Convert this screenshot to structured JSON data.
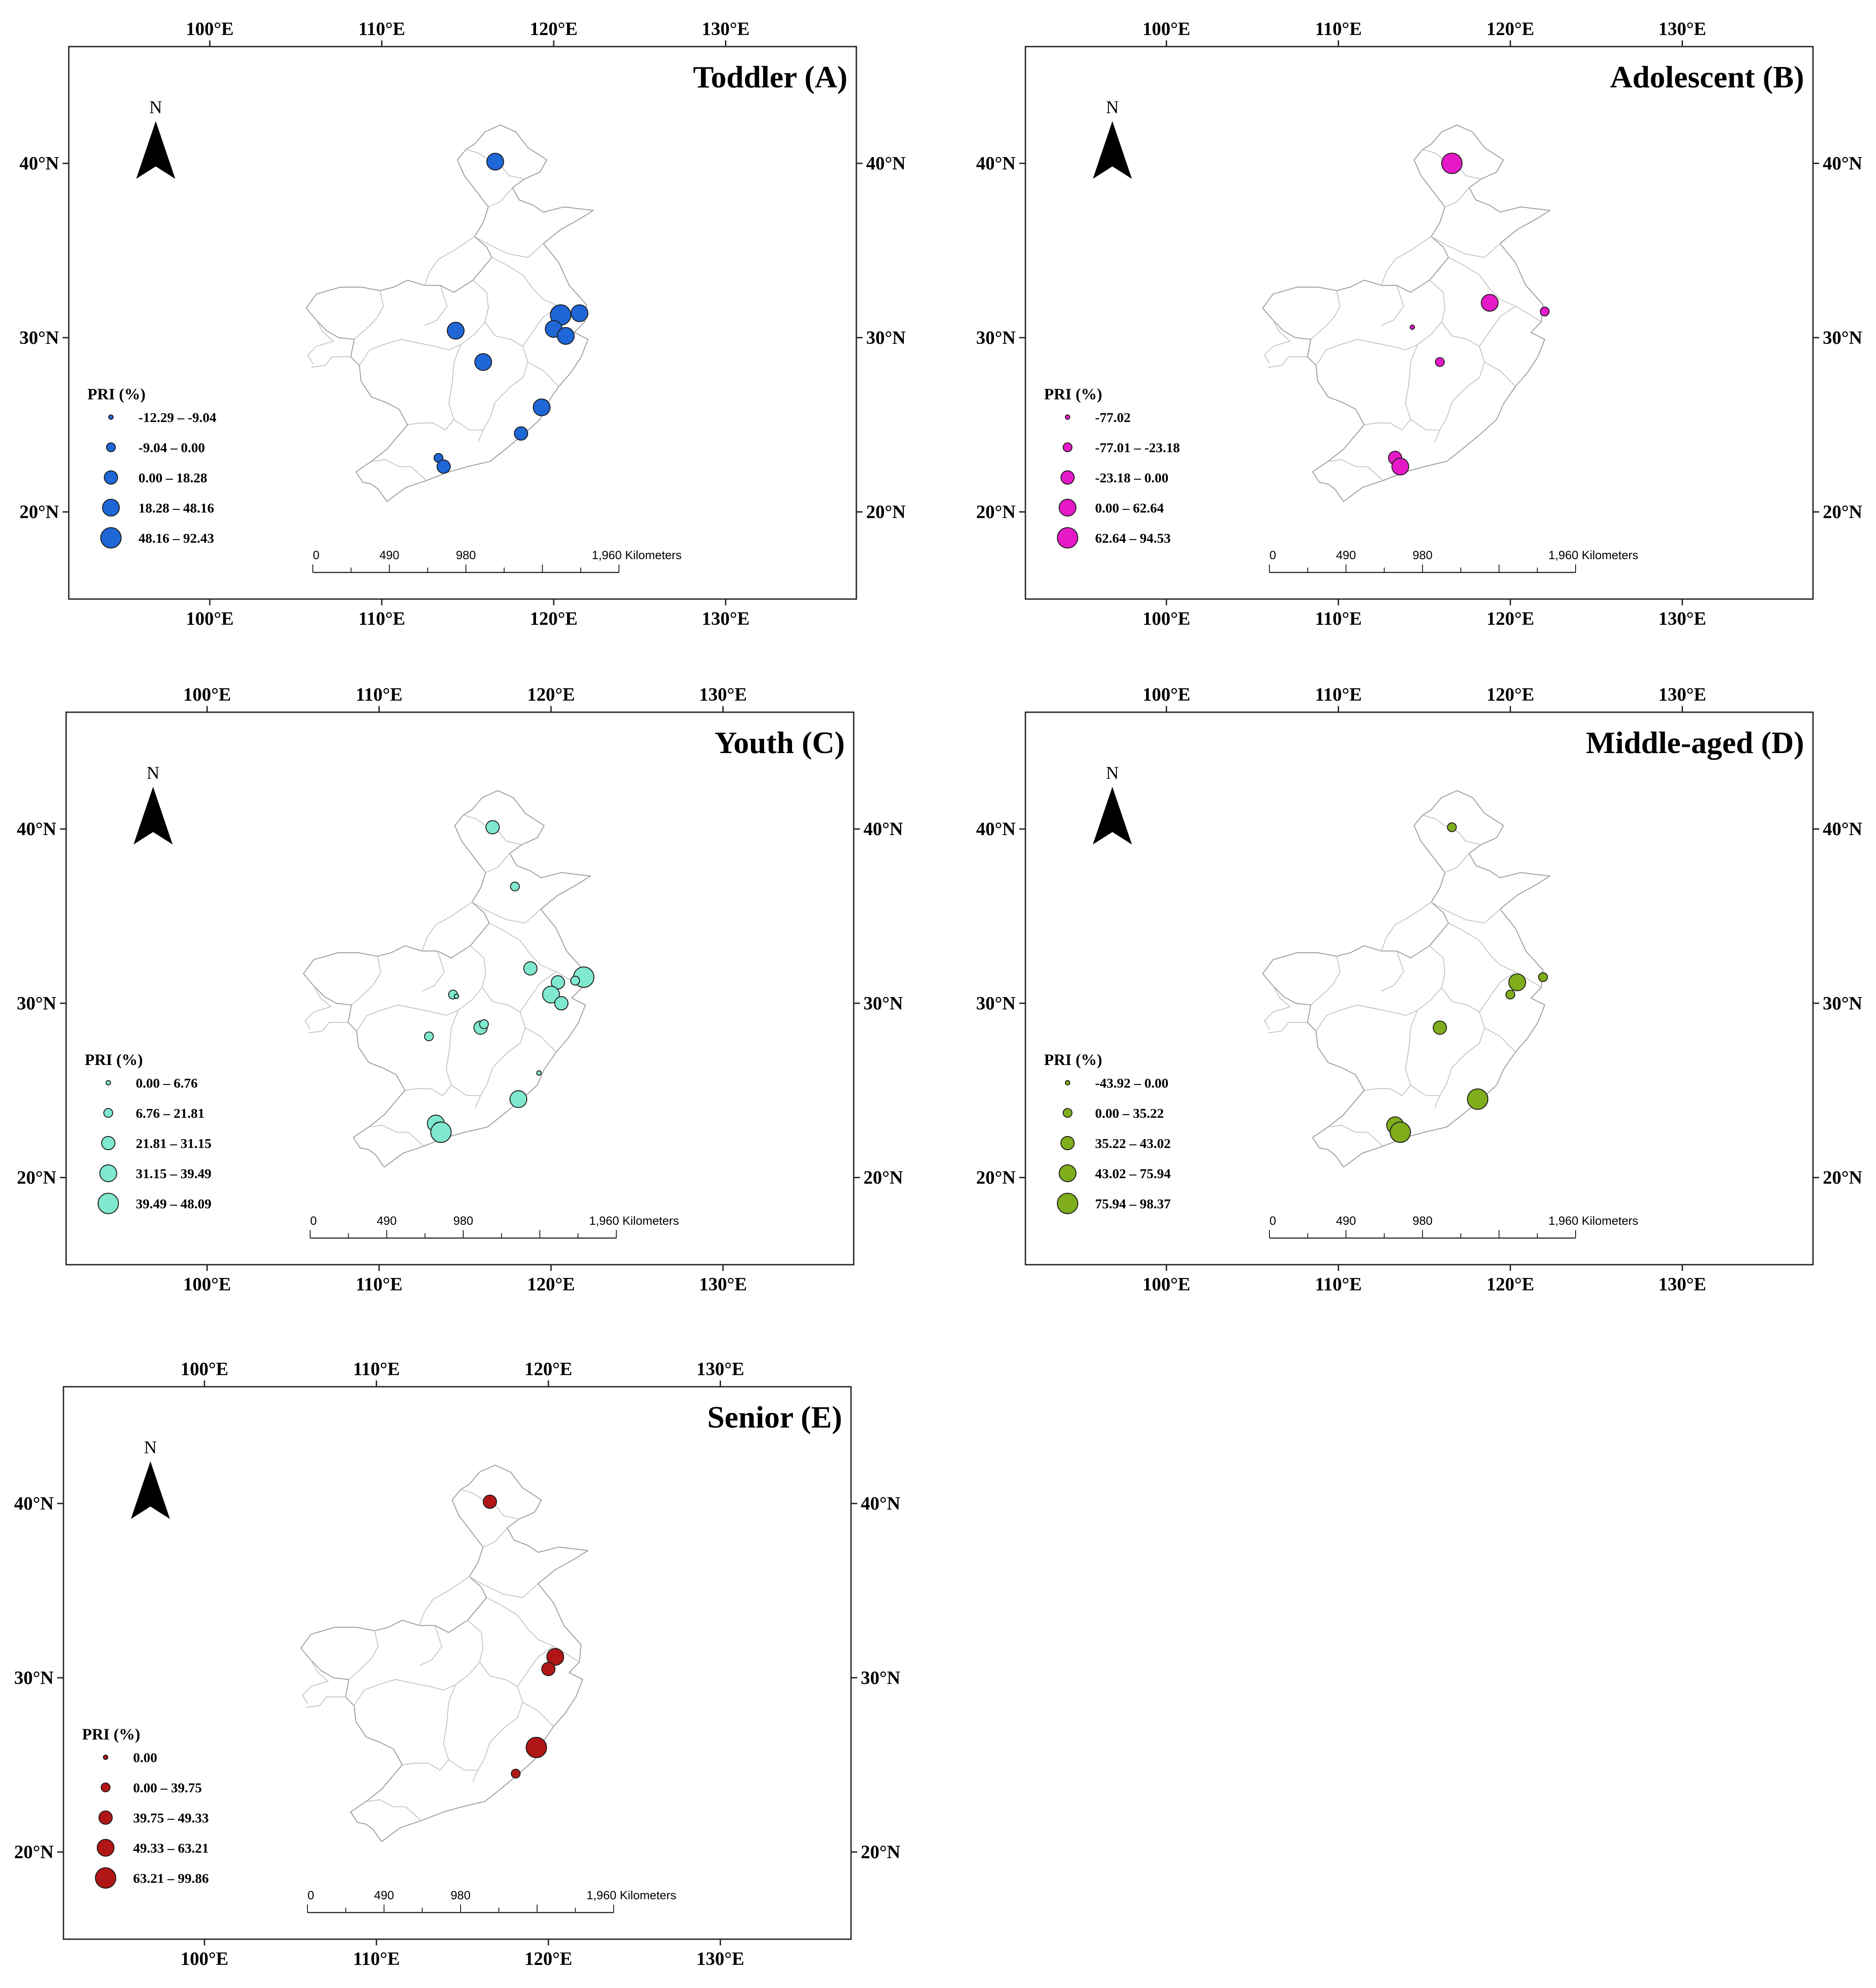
{
  "map": {
    "lon_ticks": [
      "100°E",
      "110°E",
      "120°E",
      "130°E"
    ],
    "lat_ticks": [
      "40°N",
      "30°N",
      "20°N"
    ],
    "north_label": "N",
    "legend_title": "PRI (%)",
    "scale_labels": [
      "0",
      "490",
      "980",
      "1,960 Kilometers"
    ]
  },
  "panels": [
    {
      "id": "A",
      "title": "Toddler (A)",
      "color": "#1f66d6",
      "legend": [
        "-12.29 – -9.04",
        "-9.04 – 0.00",
        "0.00 – 18.28",
        "18.28 – 48.16",
        "48.16 – 92.43"
      ],
      "sites": [
        {
          "lon": 116.6,
          "lat": 40.1,
          "cls": 3
        },
        {
          "lon": 114.3,
          "lat": 30.4,
          "cls": 3
        },
        {
          "lon": 115.9,
          "lat": 28.6,
          "cls": 3
        },
        {
          "lon": 120.4,
          "lat": 31.3,
          "cls": 4
        },
        {
          "lon": 121.5,
          "lat": 31.4,
          "cls": 3
        },
        {
          "lon": 120.0,
          "lat": 30.5,
          "cls": 3
        },
        {
          "lon": 120.7,
          "lat": 30.1,
          "cls": 3
        },
        {
          "lon": 119.3,
          "lat": 26.0,
          "cls": 3
        },
        {
          "lon": 118.1,
          "lat": 24.5,
          "cls": 2
        },
        {
          "lon": 113.3,
          "lat": 23.1,
          "cls": 1
        },
        {
          "lon": 113.6,
          "lat": 22.6,
          "cls": 2
        }
      ]
    },
    {
      "id": "B",
      "title": "Adolescent (B)",
      "color": "#e619c8",
      "legend": [
        "-77.02",
        "-77.01 – -23.18",
        "-23.18 – 0.00",
        "0.00 – 62.64",
        "62.64 – 94.53"
      ],
      "sites": [
        {
          "lon": 116.6,
          "lat": 40.0,
          "cls": 4
        },
        {
          "lon": 118.8,
          "lat": 32.0,
          "cls": 3
        },
        {
          "lon": 122.0,
          "lat": 31.5,
          "cls": 1
        },
        {
          "lon": 114.3,
          "lat": 30.6,
          "cls": 0
        },
        {
          "lon": 115.9,
          "lat": 28.6,
          "cls": 1
        },
        {
          "lon": 113.3,
          "lat": 23.1,
          "cls": 2
        },
        {
          "lon": 113.6,
          "lat": 22.6,
          "cls": 3
        }
      ]
    },
    {
      "id": "C",
      "title": "Youth (C)",
      "color": "#7fe8cf",
      "legend": [
        "0.00 – 6.76",
        "6.76 – 21.81",
        "21.81 – 31.15",
        "31.15 – 39.49",
        "39.49 – 48.09"
      ],
      "sites": [
        {
          "lon": 116.6,
          "lat": 40.1,
          "cls": 2
        },
        {
          "lon": 117.9,
          "lat": 36.7,
          "cls": 1
        },
        {
          "lon": 118.8,
          "lat": 32.0,
          "cls": 2
        },
        {
          "lon": 121.9,
          "lat": 31.5,
          "cls": 4
        },
        {
          "lon": 121.4,
          "lat": 31.3,
          "cls": 1
        },
        {
          "lon": 120.4,
          "lat": 31.2,
          "cls": 2
        },
        {
          "lon": 120.0,
          "lat": 30.5,
          "cls": 3
        },
        {
          "lon": 120.6,
          "lat": 30.0,
          "cls": 2
        },
        {
          "lon": 114.3,
          "lat": 30.5,
          "cls": 1
        },
        {
          "lon": 114.5,
          "lat": 30.4,
          "cls": 0
        },
        {
          "lon": 115.9,
          "lat": 28.6,
          "cls": 2
        },
        {
          "lon": 116.1,
          "lat": 28.8,
          "cls": 1
        },
        {
          "lon": 112.9,
          "lat": 28.1,
          "cls": 1
        },
        {
          "lon": 119.3,
          "lat": 26.0,
          "cls": 0
        },
        {
          "lon": 118.1,
          "lat": 24.5,
          "cls": 3
        },
        {
          "lon": 113.3,
          "lat": 23.1,
          "cls": 3
        },
        {
          "lon": 113.5,
          "lat": 22.8,
          "cls": 2
        },
        {
          "lon": 113.6,
          "lat": 22.6,
          "cls": 4
        }
      ]
    },
    {
      "id": "D",
      "title": "Middle-aged (D)",
      "color": "#7fad1c",
      "legend": [
        "-43.92 – 0.00",
        "0.00 – 35.22",
        "35.22 – 43.02",
        "43.02 – 75.94",
        "75.94 – 98.37"
      ],
      "sites": [
        {
          "lon": 116.6,
          "lat": 40.1,
          "cls": 1
        },
        {
          "lon": 120.4,
          "lat": 31.2,
          "cls": 3
        },
        {
          "lon": 121.9,
          "lat": 31.5,
          "cls": 1
        },
        {
          "lon": 120.0,
          "lat": 30.5,
          "cls": 1
        },
        {
          "lon": 115.9,
          "lat": 28.6,
          "cls": 2
        },
        {
          "lon": 118.1,
          "lat": 24.5,
          "cls": 4
        },
        {
          "lon": 113.3,
          "lat": 23.0,
          "cls": 3
        },
        {
          "lon": 113.6,
          "lat": 22.6,
          "cls": 4
        }
      ]
    },
    {
      "id": "E",
      "title": "Senior (E)",
      "color": "#b01616",
      "legend": [
        "0.00",
        "0.00 – 39.75",
        "39.75 – 49.33",
        "49.33 – 63.21",
        "63.21 – 99.86"
      ],
      "sites": [
        {
          "lon": 116.6,
          "lat": 40.1,
          "cls": 2
        },
        {
          "lon": 120.4,
          "lat": 31.2,
          "cls": 3
        },
        {
          "lon": 120.0,
          "lat": 30.5,
          "cls": 2
        },
        {
          "lon": 119.3,
          "lat": 26.0,
          "cls": 4
        },
        {
          "lon": 118.1,
          "lat": 24.5,
          "cls": 1
        }
      ]
    }
  ]
}
